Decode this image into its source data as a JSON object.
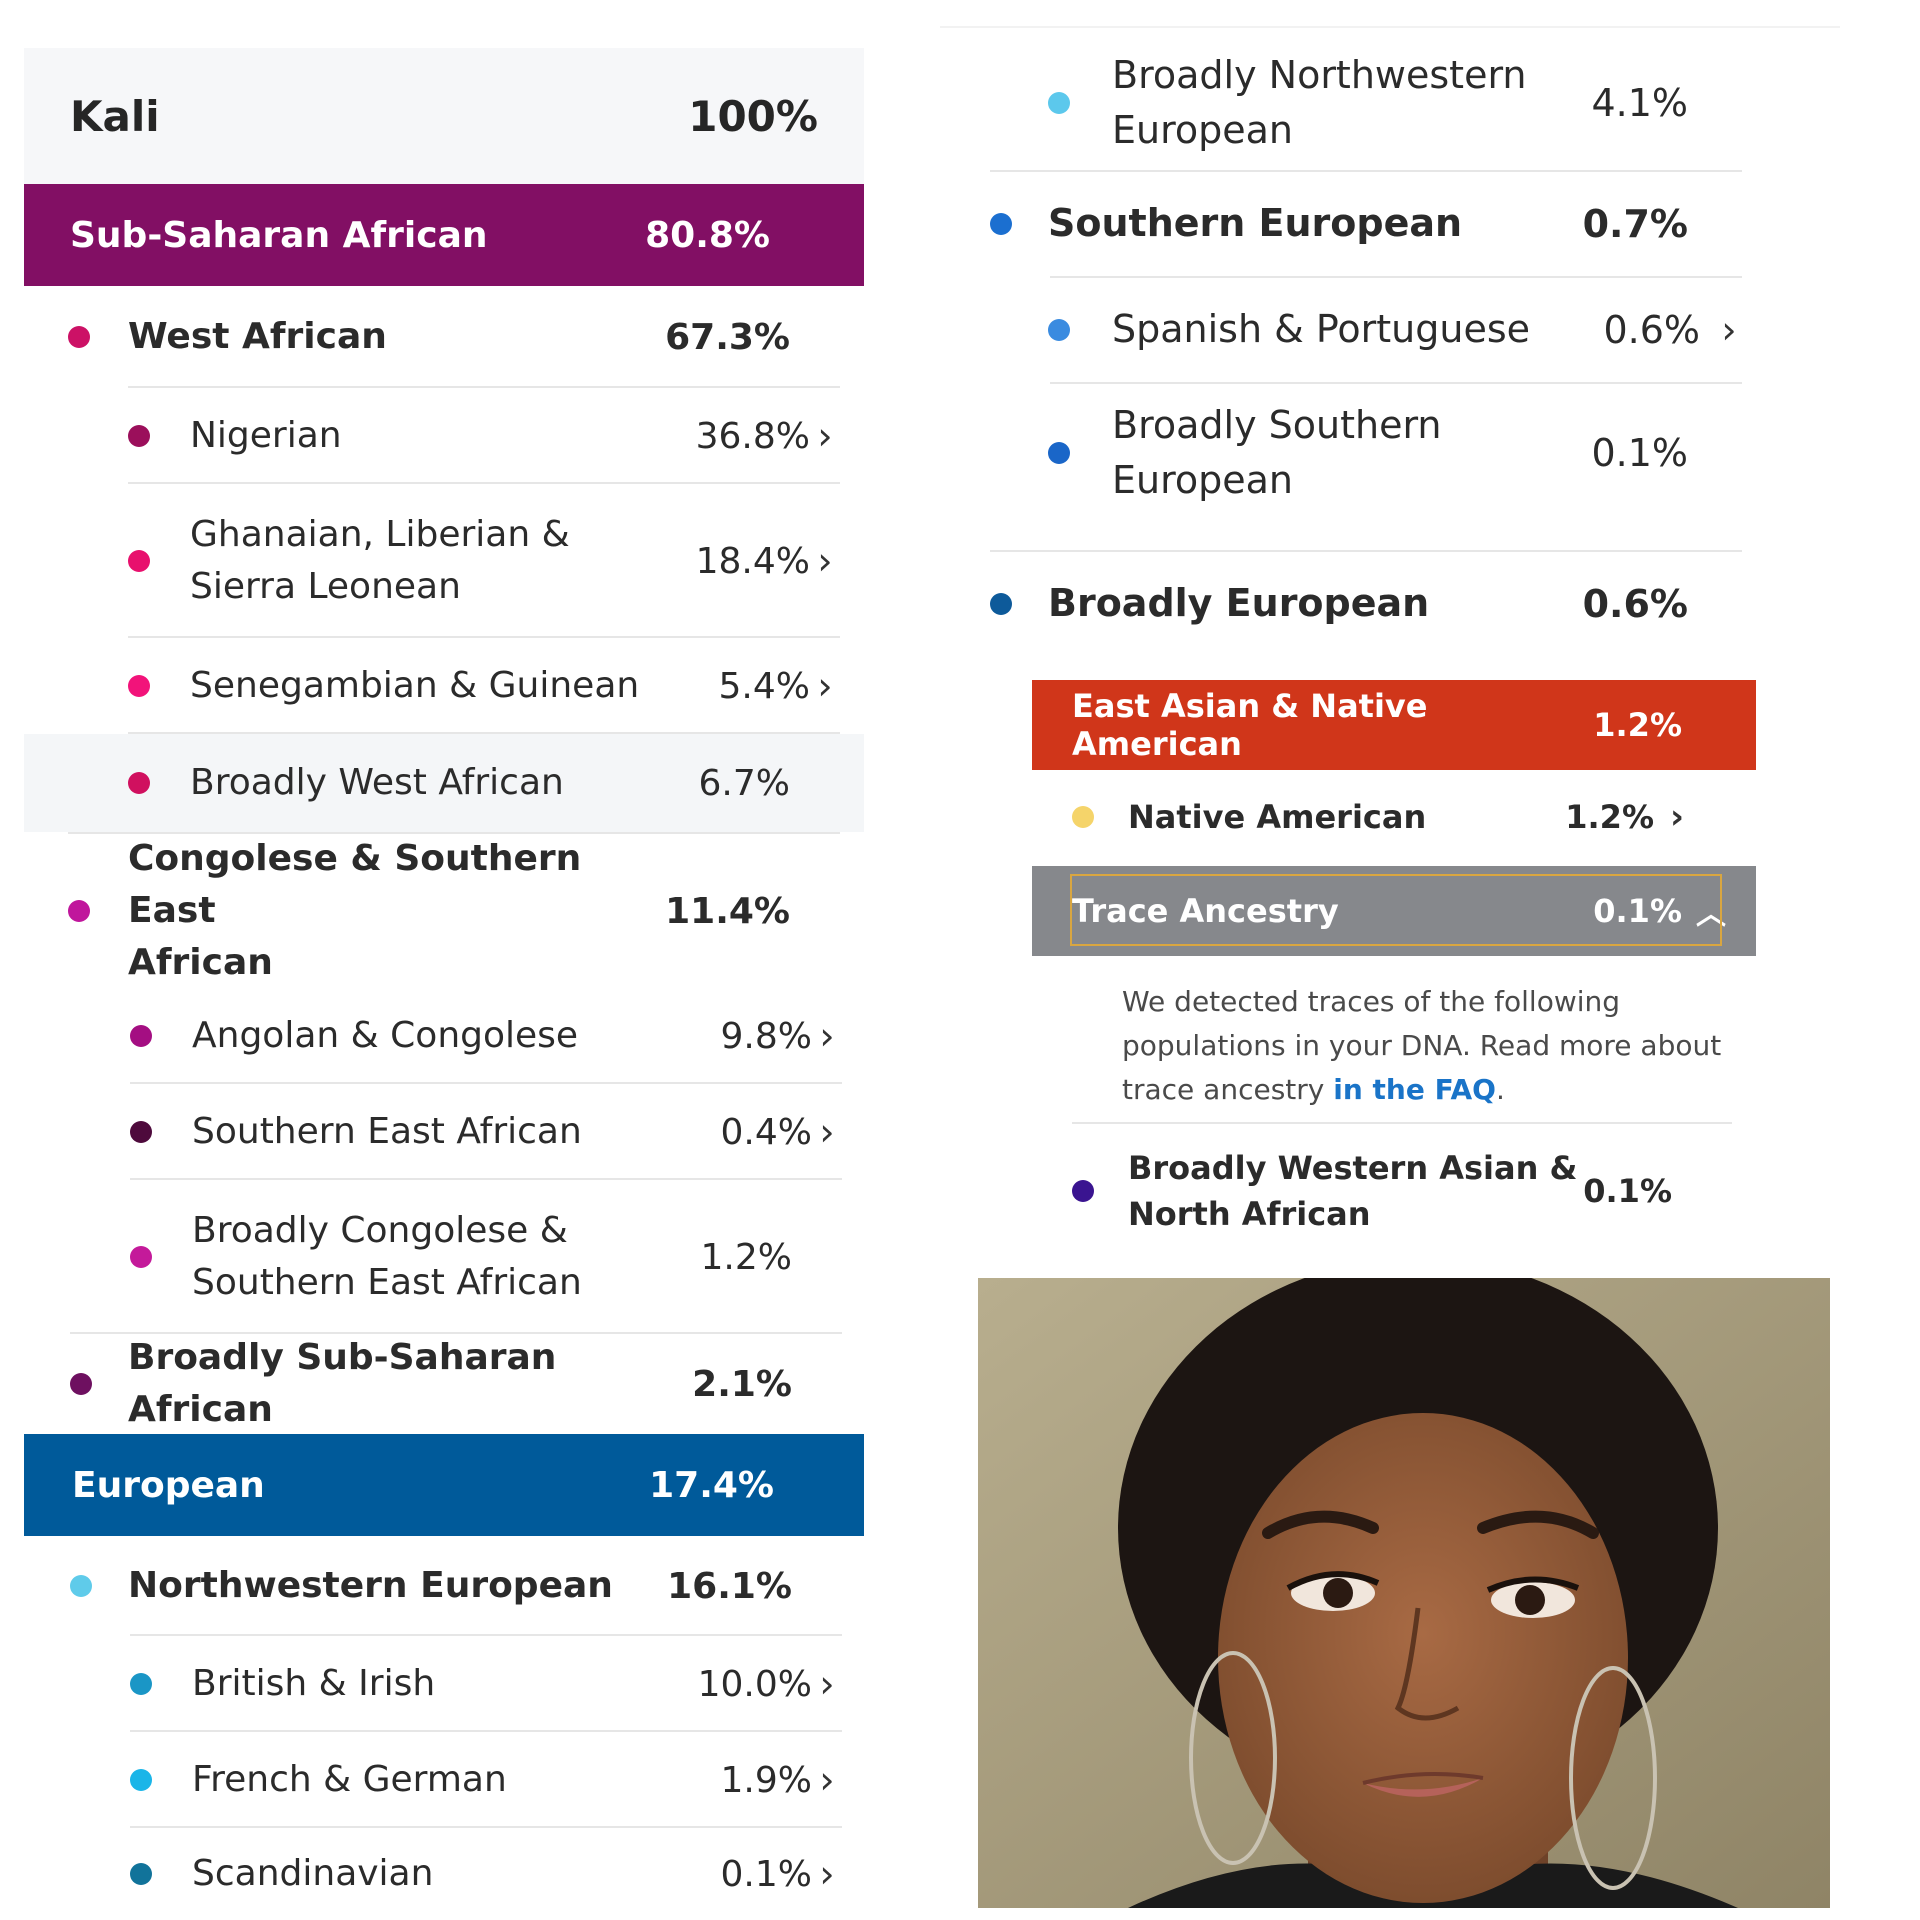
{
  "left": {
    "profile": {
      "name": "Kali",
      "percent": "100%"
    },
    "sub_saharan": {
      "label": "Sub-Saharan African",
      "percent": "80.8%",
      "color": "#820f64",
      "west": {
        "label": "West African",
        "percent": "67.3%",
        "dot": "#cc1166",
        "items": [
          {
            "label": "Nigerian",
            "percent": "36.8%",
            "dot": "#9b0f5b"
          },
          {
            "label": "Ghanaian, Liberian &",
            "label2": "Sierra Leonean",
            "percent": "18.4%",
            "dot": "#e8106d"
          },
          {
            "label": "Senegambian & Guinean",
            "percent": "5.4%",
            "dot": "#f2137a"
          },
          {
            "label": "Broadly West African",
            "percent": "6.7%",
            "dot": "#d0105f"
          }
        ]
      },
      "congo": {
        "label": "Congolese & Southern East",
        "label2": "African",
        "percent": "11.4%",
        "dot": "#c0169c",
        "items": [
          {
            "label": "Angolan & Congolese",
            "percent": "9.8%",
            "dot": "#a40e82"
          },
          {
            "label": "Southern East African",
            "percent": "0.4%",
            "dot": "#4e0a3c"
          },
          {
            "label": "Broadly Congolese &",
            "label2": "Southern East African",
            "percent": "1.2%",
            "dot": "#c41a9a"
          }
        ]
      },
      "broad": {
        "label": "Broadly Sub-Saharan African",
        "percent": "2.1%",
        "dot": "#6e1060"
      }
    },
    "european": {
      "label": "European",
      "percent": "17.4%",
      "color": "#005a9a",
      "nw": {
        "label": "Northwestern European",
        "percent": "16.1%",
        "dot": "#5fcbea",
        "items": [
          {
            "label": "British & Irish",
            "percent": "10.0%",
            "dot": "#1a96c6"
          },
          {
            "label": "French & German",
            "percent": "1.9%",
            "dot": "#1ab5e8"
          },
          {
            "label": "Scandinavian",
            "percent": "0.1%",
            "dot": "#11739a"
          }
        ]
      }
    }
  },
  "right": {
    "broad_nw": {
      "label": "Broadly Northwestern",
      "label2": "European",
      "percent": "4.1%",
      "dot": "#5cc8ec"
    },
    "southern": {
      "label": "Southern European",
      "percent": "0.7%",
      "dot": "#1b6fd0"
    },
    "spanish": {
      "label": "Spanish & Portuguese",
      "percent": "0.6%",
      "dot": "#3a8be0"
    },
    "broad_s": {
      "label": "Broadly Southern",
      "label2": "European",
      "percent": "0.1%",
      "dot": "#1a66c8"
    },
    "broad_eu": {
      "label": "Broadly European",
      "percent": "0.6%",
      "dot": "#0d5a9a"
    },
    "east_asian": {
      "label": "East Asian & Native American",
      "percent": "1.2%",
      "color": "#d0361a"
    },
    "native": {
      "label": "Native American",
      "percent": "1.2%",
      "dot": "#f5d46a"
    },
    "trace": {
      "label": "Trace Ancestry",
      "percent": "0.1%",
      "color": "#86888c",
      "desc1": "We detected traces of the following",
      "desc2": "populations in your DNA. Read more about",
      "desc3": "trace ancestry ",
      "link": "in the FAQ",
      "period": "."
    },
    "wana": {
      "label": "Broadly Western Asian &",
      "label2": "North African",
      "percent": "0.1%",
      "dot": "#3a1490"
    }
  }
}
